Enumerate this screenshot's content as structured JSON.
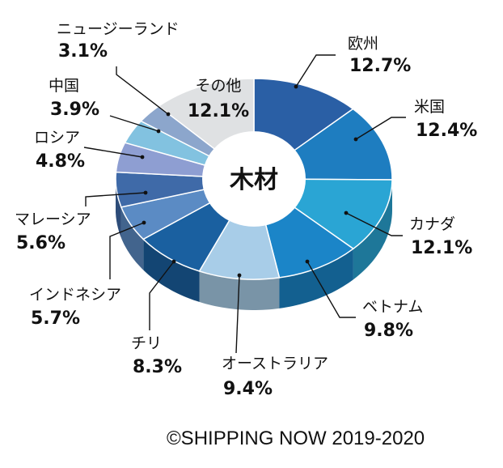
{
  "chart_data": {
    "type": "pie",
    "style": "3d-donut",
    "center_label": "木材",
    "direction": "clockwise from top",
    "slices": [
      {
        "name": "欧州",
        "value": 12.7,
        "label": "12.7%",
        "color": "#2a5fa5"
      },
      {
        "name": "米国",
        "value": 12.4,
        "label": "12.4%",
        "color": "#1e7dc0"
      },
      {
        "name": "カナダ",
        "value": 12.1,
        "label": "12.1%",
        "color": "#2aa5d4"
      },
      {
        "name": "ベトナム",
        "value": 9.8,
        "label": "9.8%",
        "color": "#1b85c8"
      },
      {
        "name": "オーストラリア",
        "value": 9.4,
        "label": "9.4%",
        "color": "#a8cde8"
      },
      {
        "name": "チリ",
        "value": 8.3,
        "label": "8.3%",
        "color": "#1a60a0"
      },
      {
        "name": "インドネシア",
        "value": 5.7,
        "label": "5.7%",
        "color": "#5b8bc4"
      },
      {
        "name": "マレーシア",
        "value": 5.6,
        "label": "5.6%",
        "color": "#3f6aa8"
      },
      {
        "name": "ロシア",
        "value": 4.8,
        "label": "4.8%",
        "color": "#8e9ed2"
      },
      {
        "name": "中国",
        "value": 3.9,
        "label": "3.9%",
        "color": "#82c2e0"
      },
      {
        "name": "ニュージーランド",
        "value": 3.1,
        "label": "3.1%",
        "color": "#8ca6cc"
      },
      {
        "name": "その他",
        "value": 12.1,
        "label": "12.1%",
        "color": "#dfe1e3"
      }
    ]
  },
  "footer": {
    "copyright": "©SHIPPING NOW 2019-2020"
  }
}
